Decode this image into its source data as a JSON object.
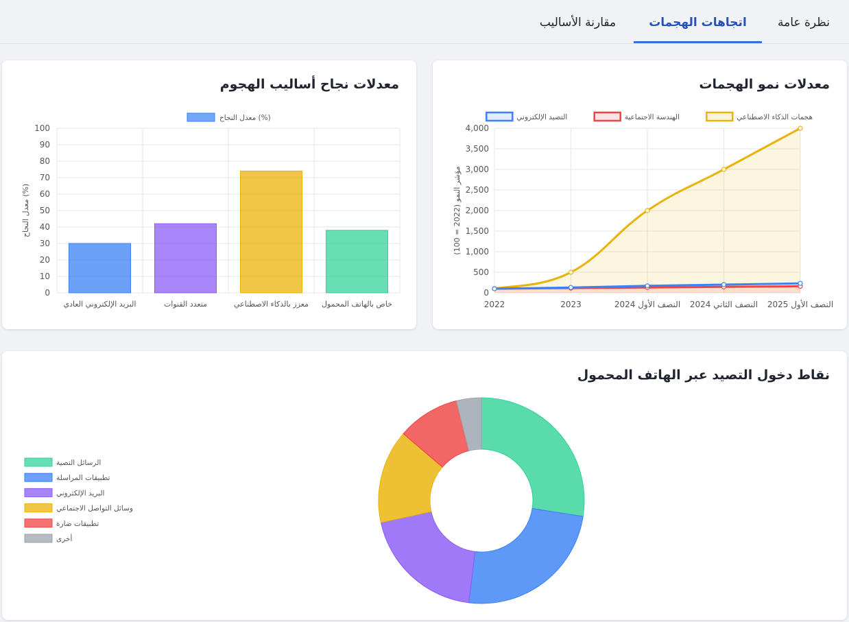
{
  "tabs": {
    "overview": "نظرة عامة",
    "trends": "اتجاهات الهجمات",
    "comparison": "مقارنة الأساليب"
  },
  "colors": {
    "blue": "#3b82f6",
    "red": "#ef4444",
    "yellow": "#eab308",
    "green": "#34d399",
    "purple": "#8b5cf6",
    "gray": "#9ca3af"
  },
  "growth_card": {
    "title": "معدلات نمو الهجمات"
  },
  "success_card": {
    "title": "معدلات نجاح أساليب الهجوم"
  },
  "mobile_card": {
    "title": "نقاط دخول التصيد عبر الهاتف المحمول"
  },
  "chart_data": [
    {
      "id": "growth",
      "type": "line",
      "ylabel": "مؤشر النمو (2022 = 100)",
      "ylim": [
        0,
        4000
      ],
      "yticks": [
        0,
        500,
        1000,
        1500,
        2000,
        2500,
        3000,
        3500,
        4000
      ],
      "ytick_labels": [
        "0",
        "500",
        "1,000",
        "1,500",
        "2,000",
        "2,500",
        "3,000",
        "3,500",
        "4,000"
      ],
      "categories": [
        "2022",
        "2023",
        "النصف الأول 2024",
        "النصف الثاني 2024",
        "النصف الأول 2025"
      ],
      "legend_position": "top",
      "grid": true,
      "series": [
        {
          "name": "التصيد الإلكتروني",
          "color": "#3b82f6",
          "fill": false,
          "values": [
            100,
            130,
            170,
            200,
            230
          ]
        },
        {
          "name": "الهندسة الاجتماعية",
          "color": "#ef4444",
          "fill": true,
          "values": [
            100,
            115,
            130,
            145,
            160
          ]
        },
        {
          "name": "هجمات الذكاء الاصطناعي",
          "color": "#eab308",
          "fill": true,
          "values": [
            100,
            500,
            2000,
            3000,
            4000
          ]
        }
      ]
    },
    {
      "id": "success",
      "type": "bar",
      "ylabel": "معدل النجاح (%)",
      "ylim": [
        0,
        100
      ],
      "yticks": [
        0,
        10,
        20,
        30,
        40,
        50,
        60,
        70,
        80,
        90,
        100
      ],
      "legend_position": "top",
      "grid": true,
      "series": [
        {
          "name": "معدل النجاح (%)",
          "color": "#3b82f6"
        }
      ],
      "categories": [
        "البريد الإلكتروني العادي",
        "متعدد القنوات",
        "معزز بالذكاء الاصطناعي",
        "خاص بالهاتف المحمول"
      ],
      "values": [
        30,
        42,
        74,
        38
      ],
      "bar_colors": [
        "#3b82f6",
        "#8b5cf6",
        "#eab308",
        "#34d399"
      ]
    },
    {
      "id": "mobile",
      "type": "pie",
      "donut": true,
      "legend_position": "left",
      "labels": [
        "الرسائل النصية",
        "تطبيقات المراسلة",
        "البريد الإلكتروني",
        "وسائل التواصل الاجتماعي",
        "تطبيقات ضارة",
        "أخرى"
      ],
      "values": [
        28,
        25,
        20,
        15,
        10,
        4
      ],
      "colors": [
        "#34d399",
        "#3b82f6",
        "#8b5cf6",
        "#eab308",
        "#ef4444",
        "#9ca3af"
      ]
    }
  ]
}
